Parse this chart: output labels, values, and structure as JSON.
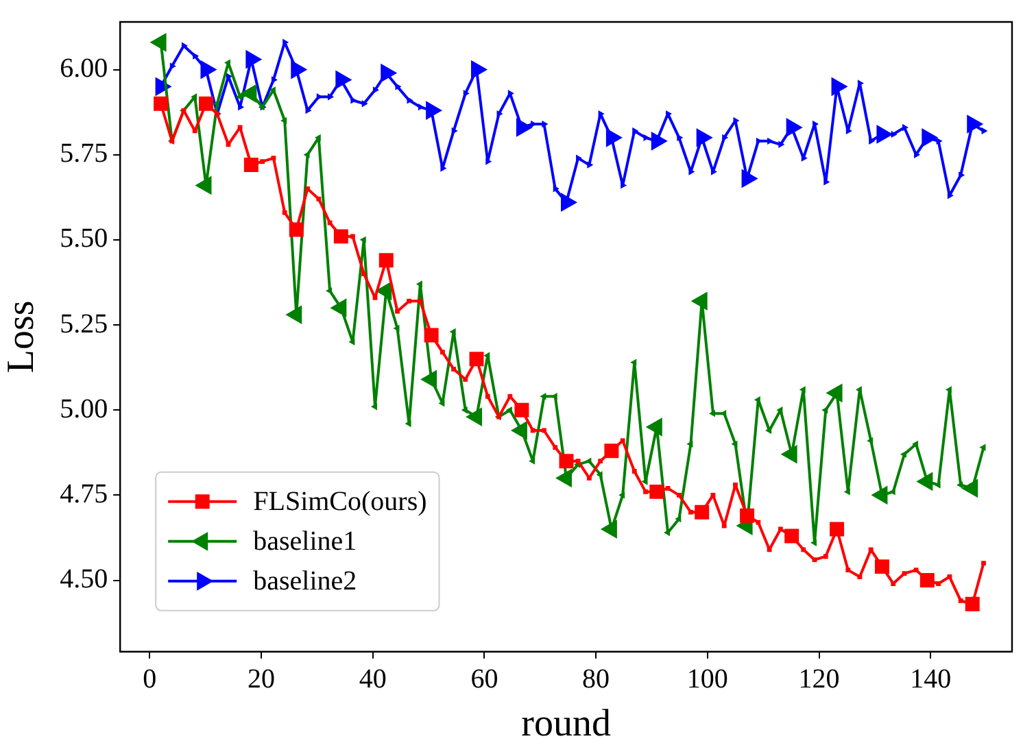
{
  "chart_data": {
    "type": "line",
    "xlabel": "round",
    "ylabel": "Loss",
    "legend": "bottom left",
    "grid": false,
    "line_style": "solid",
    "xlim": [
      -5.3,
      154.6
    ],
    "ylim": [
      4.29,
      6.14
    ],
    "xticks": [
      0,
      20,
      40,
      60,
      80,
      100,
      120,
      140
    ],
    "yticks": [
      {
        "value": 4.5,
        "label": "4.50"
      },
      {
        "value": 4.75,
        "label": "4.75"
      },
      {
        "value": 5,
        "label": "5.00"
      },
      {
        "value": 5.25,
        "label": "5.25"
      },
      {
        "value": 5.5,
        "label": "5.50"
      },
      {
        "value": 5.75,
        "label": "5.75"
      },
      {
        "value": 6,
        "label": "6.00"
      }
    ],
    "x": [
      2.0,
      4.0,
      6.1,
      8.1,
      10.1,
      12.1,
      14.1,
      16.2,
      18.2,
      20.2,
      22.2,
      24.2,
      26.3,
      28.3,
      30.3,
      32.3,
      34.3,
      36.4,
      38.4,
      40.4,
      42.4,
      44.4,
      46.5,
      48.5,
      50.5,
      52.5,
      54.5,
      56.6,
      58.6,
      60.6,
      62.6,
      64.6,
      66.7,
      68.7,
      70.7,
      72.7,
      74.7,
      76.8,
      78.8,
      80.8,
      82.8,
      84.8,
      86.9,
      88.9,
      90.9,
      92.9,
      94.9,
      97.0,
      99.0,
      101.0,
      103.0,
      105.0,
      107.1,
      109.1,
      111.1,
      113.1,
      115.1,
      117.2,
      119.2,
      121.2,
      123.2,
      125.2,
      127.3,
      129.3,
      131.3,
      133.3,
      135.3,
      137.4,
      139.4,
      141.4,
      143.4,
      145.4,
      147.5,
      149.5
    ],
    "series": [
      {
        "name": "FLSimCo(ours)",
        "color": "#ff0000",
        "marker": "square",
        "values": [
          5.9,
          5.79,
          5.88,
          5.82,
          5.9,
          5.87,
          5.78,
          5.83,
          5.72,
          5.73,
          5.74,
          5.58,
          5.53,
          5.65,
          5.62,
          5.55,
          5.51,
          5.51,
          5.4,
          5.33,
          5.44,
          5.29,
          5.32,
          5.32,
          5.22,
          5.17,
          5.12,
          5.09,
          5.15,
          5.04,
          4.98,
          5.04,
          5.0,
          4.94,
          4.94,
          4.89,
          4.85,
          4.85,
          4.8,
          4.85,
          4.88,
          4.91,
          4.82,
          4.76,
          4.76,
          4.77,
          4.75,
          4.7,
          4.7,
          4.75,
          4.66,
          4.78,
          4.69,
          4.67,
          4.59,
          4.65,
          4.63,
          4.59,
          4.56,
          4.57,
          4.65,
          4.53,
          4.51,
          4.59,
          4.54,
          4.49,
          4.52,
          4.53,
          4.5,
          4.49,
          4.51,
          4.44,
          4.43,
          4.55
        ]
      },
      {
        "name": "baseline1",
        "color": "#008000",
        "marker": "triangle",
        "values": [
          6.08,
          5.79,
          5.88,
          5.92,
          5.66,
          5.9,
          6.02,
          5.92,
          5.93,
          5.89,
          5.94,
          5.85,
          5.28,
          5.75,
          5.8,
          5.35,
          5.3,
          5.2,
          5.5,
          5.01,
          5.35,
          5.24,
          4.96,
          5.37,
          5.09,
          5.02,
          5.23,
          5.0,
          4.98,
          5.16,
          4.98,
          5.0,
          4.94,
          4.85,
          5.04,
          5.04,
          4.8,
          4.84,
          4.85,
          4.81,
          4.65,
          4.75,
          5.14,
          4.79,
          4.95,
          4.64,
          4.68,
          4.9,
          5.32,
          4.99,
          4.99,
          4.9,
          4.66,
          5.03,
          4.94,
          5.0,
          4.87,
          5.06,
          4.61,
          5.0,
          5.05,
          4.76,
          5.06,
          4.91,
          4.75,
          4.76,
          4.87,
          4.9,
          4.79,
          4.78,
          5.06,
          4.78,
          4.77,
          4.89
        ]
      },
      {
        "name": "baseline2",
        "color": "#0000ff",
        "marker": "triangle",
        "values": [
          5.95,
          6.01,
          6.07,
          6.04,
          6.0,
          5.87,
          5.98,
          5.89,
          6.03,
          5.89,
          5.97,
          6.08,
          6.0,
          5.88,
          5.92,
          5.92,
          5.97,
          5.91,
          5.9,
          5.94,
          5.99,
          5.95,
          5.91,
          5.89,
          5.88,
          5.71,
          5.82,
          5.93,
          6.0,
          5.73,
          5.87,
          5.93,
          5.83,
          5.84,
          5.84,
          5.65,
          5.61,
          5.74,
          5.72,
          5.87,
          5.8,
          5.66,
          5.82,
          5.8,
          5.79,
          5.87,
          5.8,
          5.7,
          5.8,
          5.7,
          5.8,
          5.85,
          5.68,
          5.79,
          5.79,
          5.78,
          5.83,
          5.74,
          5.84,
          5.67,
          5.95,
          5.82,
          5.96,
          5.79,
          5.81,
          5.81,
          5.83,
          5.75,
          5.8,
          5.79,
          5.63,
          5.69,
          5.84,
          5.82
        ]
      }
    ]
  }
}
